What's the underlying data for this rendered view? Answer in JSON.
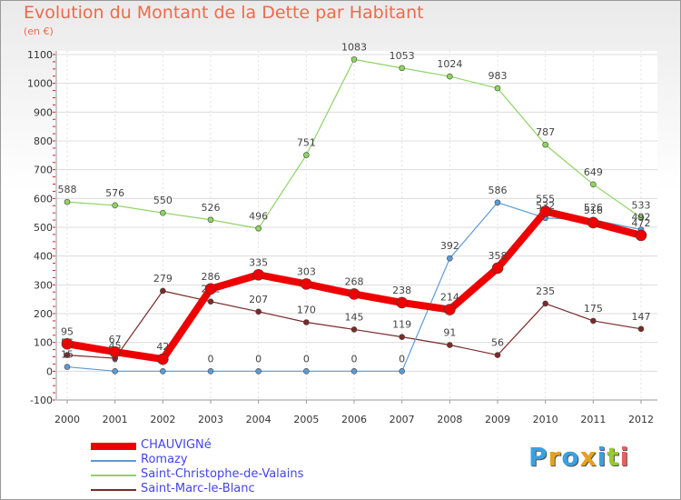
{
  "chart_data": {
    "type": "line",
    "title": "Evolution du Montant de la Dette par Habitant",
    "subtitle": "(en €)",
    "x": [
      "2000",
      "2001",
      "2002",
      "2003",
      "2004",
      "2005",
      "2006",
      "2007",
      "2008",
      "2009",
      "2010",
      "2011",
      "2012"
    ],
    "ylim": [
      -100,
      1100
    ],
    "yticks": [
      "-100",
      "0",
      "100",
      "200",
      "300",
      "400",
      "500",
      "600",
      "700",
      "800",
      "900",
      "1000",
      "1100"
    ],
    "grid": true,
    "legend_placement": "bottom-left",
    "series": [
      {
        "name": "Saint-Marc-le-Blanc",
        "color": "#7a2a2a",
        "width": 1.2,
        "values": [
          56,
          45,
          279,
          242,
          207,
          170,
          145,
          119,
          91,
          56,
          235,
          175,
          147
        ],
        "labels": [
          "56",
          "45",
          "279",
          "242",
          "207",
          "170",
          "145",
          "119",
          "91",
          "56",
          "235",
          "175",
          "147"
        ]
      },
      {
        "name": "Saint-Christophe-de-Valains",
        "color": "#8fd463",
        "width": 1.2,
        "values": [
          588,
          576,
          550,
          526,
          496,
          751,
          1083,
          1053,
          1024,
          983,
          787,
          649,
          533
        ],
        "labels": [
          "588",
          "576",
          "550",
          "526",
          "496",
          "751",
          "1083",
          "1053",
          "1024",
          "983",
          "787",
          "649",
          "533"
        ]
      },
      {
        "name": "Romazy",
        "color": "#5b9bd5",
        "width": 1.2,
        "values": [
          15,
          0,
          0,
          0,
          0,
          0,
          0,
          0,
          392,
          586,
          532,
          526,
          492
        ],
        "labels": [
          "15",
          "0",
          "0",
          "0",
          "0",
          "0",
          "0",
          "0",
          "392",
          "586",
          "532",
          "526",
          "492"
        ]
      },
      {
        "name": "CHAUVIGNé",
        "color": "#ee0000",
        "width": 8,
        "values": [
          95,
          67,
          42,
          286,
          335,
          303,
          268,
          238,
          214,
          358,
          555,
          516,
          472
        ],
        "labels": [
          "95",
          "67",
          "42",
          "286",
          "335",
          "303",
          "268",
          "238",
          "214",
          "358",
          "555",
          "516",
          "472"
        ]
      }
    ],
    "legend": [
      {
        "name": "CHAUVIGNé",
        "color": "#ee0000",
        "thick": true
      },
      {
        "name": "Romazy",
        "color": "#5b9bd5",
        "thick": false
      },
      {
        "name": "Saint-Christophe-de-Valains",
        "color": "#8fd463",
        "thick": false
      },
      {
        "name": "Saint-Marc-le-Blanc",
        "color": "#7a2a2a",
        "thick": false
      }
    ]
  },
  "logo": {
    "text": "Proxiti",
    "colors": [
      "#3aa0e0",
      "#e8a020",
      "#3aa0e0",
      "#e8a020",
      "#3aa0e0",
      "#9ac830",
      "#e86060"
    ]
  }
}
